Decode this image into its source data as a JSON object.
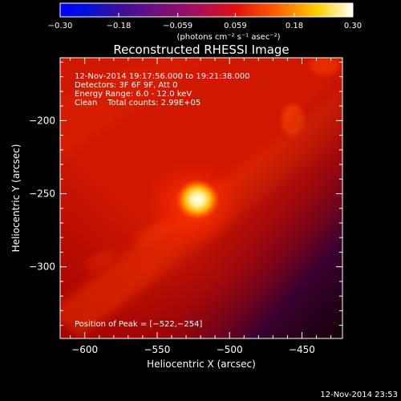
{
  "colorbar": {
    "ticks": [
      "-0.30",
      "-0.18",
      "-0.059",
      "0.059",
      "0.18",
      "0.30"
    ],
    "tick_values": [
      -0.3,
      -0.18,
      -0.059,
      0.059,
      0.18,
      0.3
    ],
    "range": [
      -0.3,
      0.3
    ],
    "units": "(photons cm⁻² s⁻¹ asec⁻²)"
  },
  "chart_data": {
    "type": "heatmap",
    "title": "Reconstructed RHESSI Image",
    "xlabel": "Heliocentric X (arcsec)",
    "ylabel": "Heliocentric Y (arcsec)",
    "xlim": [
      -617,
      -422
    ],
    "ylim": [
      -349,
      -157
    ],
    "xticks": [
      -600,
      -550,
      -500,
      -450
    ],
    "yticks": [
      -300,
      -250,
      -200
    ],
    "xtick_labels": [
      "−600",
      "−550",
      "−500",
      "−450"
    ],
    "ytick_labels": [
      "−300",
      "−250",
      "−200"
    ],
    "peak": {
      "x": -522,
      "y": -254,
      "value": 0.3
    },
    "colors": {
      "low": "#000000",
      "mid": "#d42000",
      "high": "#ffffff"
    },
    "annotations": [
      "12-Nov-2014 19:17:56.000 to 19:21:38.000",
      "Detectors: 3F 6F 9F, Att 0",
      "Energy Range: 6.0 - 12.0 keV",
      "Clean    Total counts: 2.99E+05"
    ],
    "peak_label": "Position of Peak = [−522,−254]"
  },
  "footer": {
    "timestamp": "12-Nov-2014 23:53"
  }
}
